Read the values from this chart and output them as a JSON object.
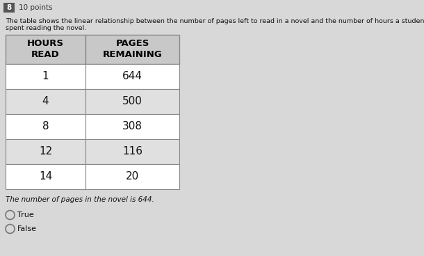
{
  "question_number": "8",
  "points": "10 points",
  "description_line1": "The table shows the linear relationship between the number of pages left to read in a novel and the number of hours a student has already",
  "description_line2": "spent reading the novel.",
  "col1_header": "HOURS\nREAD",
  "col2_header": "PAGES\nREMAINING",
  "hours": [
    "1",
    "4",
    "8",
    "12",
    "14"
  ],
  "pages": [
    "644",
    "500",
    "308",
    "116",
    "20"
  ],
  "statement": "The number of pages in the novel is 644.",
  "option_true": "True",
  "option_false": "False",
  "bg_color": "#d8d8d8",
  "table_bg_white": "#ffffff",
  "table_bg_gray": "#e0e0e0",
  "header_bg": "#c8c8c8",
  "border_color": "#888888",
  "text_color": "#111111",
  "header_text_color": "#000000"
}
